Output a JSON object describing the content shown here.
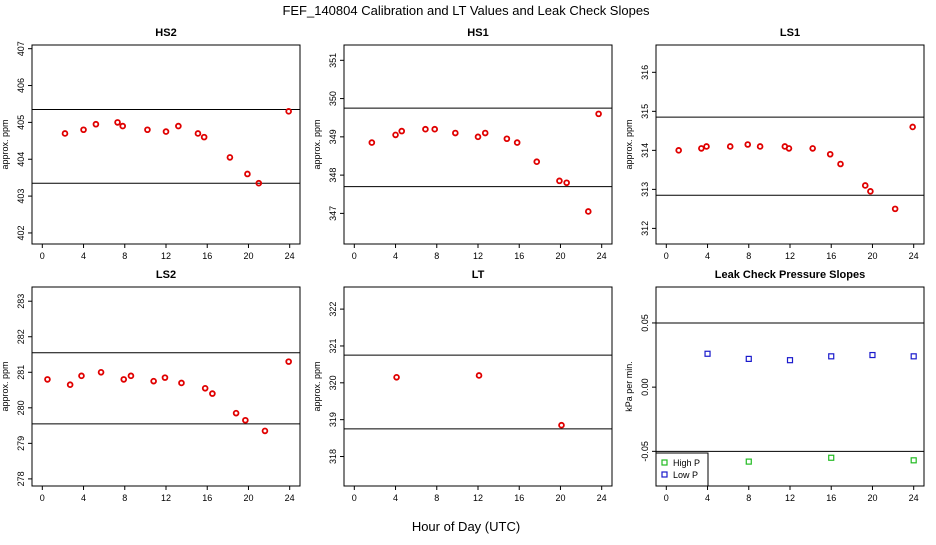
{
  "title": "FEF_140804  Calibration and LT Values and Leak Check Slopes",
  "common_xlabel": "Hour of Day (UTC)",
  "colors": {
    "points": "#e00000",
    "high_p": "#22bb22",
    "low_p": "#1a1acc",
    "line": "#000000"
  },
  "chart_data": [
    {
      "type": "scatter",
      "title": "HS2",
      "ylabel": "approx. ppm",
      "xlim": [
        -1,
        25
      ],
      "ylim": [
        401.7,
        407.1
      ],
      "xticks": [
        0,
        4,
        8,
        12,
        16,
        20,
        24
      ],
      "yticks": [
        402,
        403,
        404,
        405,
        406,
        407
      ],
      "hlines": [
        405.35,
        403.35
      ],
      "series": [
        {
          "x": [
            2.2,
            4,
            5.2,
            7.3,
            7.8,
            10.2,
            12,
            13.2,
            15.1,
            15.7,
            18.2,
            19.9,
            21,
            23.9
          ],
          "y": [
            404.7,
            404.8,
            404.95,
            405.0,
            404.9,
            404.8,
            404.75,
            404.9,
            404.7,
            404.6,
            404.05,
            403.6,
            403.35,
            405.3
          ]
        }
      ]
    },
    {
      "type": "scatter",
      "title": "HS1",
      "ylabel": "approx. ppm",
      "xlim": [
        -1,
        25
      ],
      "ylim": [
        346.2,
        351.4
      ],
      "xticks": [
        0,
        4,
        8,
        12,
        16,
        20,
        24
      ],
      "yticks": [
        347,
        348,
        349,
        350,
        351
      ],
      "hlines": [
        349.75,
        347.7
      ],
      "series": [
        {
          "x": [
            1.7,
            4,
            4.6,
            6.9,
            7.8,
            9.8,
            12,
            12.7,
            14.8,
            15.8,
            17.7,
            19.9,
            20.6,
            22.7,
            23.7
          ],
          "y": [
            348.85,
            349.05,
            349.15,
            349.2,
            349.2,
            349.1,
            349.0,
            349.1,
            348.95,
            348.85,
            348.35,
            347.85,
            347.8,
            347.05,
            349.6
          ]
        }
      ]
    },
    {
      "type": "scatter",
      "title": "LS1",
      "ylabel": "approx. ppm",
      "xlim": [
        -1,
        25
      ],
      "ylim": [
        311.6,
        316.7
      ],
      "xticks": [
        0,
        4,
        8,
        12,
        16,
        20,
        24
      ],
      "yticks": [
        312,
        313,
        314,
        315,
        316
      ],
      "hlines": [
        314.85,
        312.85
      ],
      "series": [
        {
          "x": [
            1.2,
            3.4,
            3.9,
            6.2,
            7.9,
            9.1,
            11.5,
            11.9,
            14.2,
            15.9,
            16.9,
            19.3,
            19.8,
            22.2,
            23.9
          ],
          "y": [
            314.0,
            314.05,
            314.1,
            314.1,
            314.15,
            314.1,
            314.1,
            314.05,
            314.05,
            313.9,
            313.65,
            313.1,
            312.95,
            312.5,
            314.6
          ]
        }
      ]
    },
    {
      "type": "scatter",
      "title": "LS2",
      "ylabel": "approx. ppm",
      "xlim": [
        -1,
        25
      ],
      "ylim": [
        277.8,
        283.4
      ],
      "xticks": [
        0,
        4,
        8,
        12,
        16,
        20,
        24
      ],
      "yticks": [
        278,
        279,
        280,
        281,
        282,
        283
      ],
      "hlines": [
        281.55,
        279.55
      ],
      "series": [
        {
          "x": [
            0.5,
            2.7,
            3.8,
            5.7,
            7.9,
            8.6,
            10.8,
            11.9,
            13.5,
            15.8,
            16.5,
            18.8,
            19.7,
            21.6,
            23.9
          ],
          "y": [
            280.8,
            280.65,
            280.9,
            281.0,
            280.8,
            280.9,
            280.75,
            280.85,
            280.7,
            280.55,
            280.4,
            279.85,
            279.65,
            279.35,
            281.3
          ]
        }
      ]
    },
    {
      "type": "scatter",
      "title": "LT",
      "ylabel": "approx. ppm",
      "xlim": [
        -1,
        25
      ],
      "ylim": [
        317.2,
        322.6
      ],
      "xticks": [
        0,
        4,
        8,
        12,
        16,
        20,
        24
      ],
      "yticks": [
        318,
        319,
        320,
        321,
        322
      ],
      "hlines": [
        320.75,
        318.75
      ],
      "series": [
        {
          "x": [
            4.1,
            12.1,
            20.1
          ],
          "y": [
            320.15,
            320.2,
            318.85
          ]
        }
      ]
    },
    {
      "type": "scatter",
      "title": "Leak Check Pressure Slopes",
      "ylabel": "kPa per min.",
      "xlim": [
        -1,
        25
      ],
      "ylim": [
        -0.077,
        0.078
      ],
      "xticks": [
        0,
        4,
        8,
        12,
        16,
        20,
        24
      ],
      "yticks": [
        -0.05,
        0.0,
        0.05
      ],
      "ytick_labels": [
        "-0.05",
        "0.00",
        "0.05"
      ],
      "hlines": [
        0.05,
        -0.05
      ],
      "legend": {
        "position": "bottom-left",
        "entries": [
          "High P",
          "Low P"
        ]
      },
      "series": [
        {
          "name": "High P",
          "x": [
            8,
            16,
            24
          ],
          "y": [
            -0.058,
            -0.055,
            -0.057
          ]
        },
        {
          "name": "Low P",
          "x": [
            4,
            8,
            12,
            16,
            20,
            24
          ],
          "y": [
            0.026,
            0.022,
            0.021,
            0.024,
            0.025,
            0.024
          ]
        }
      ]
    }
  ]
}
